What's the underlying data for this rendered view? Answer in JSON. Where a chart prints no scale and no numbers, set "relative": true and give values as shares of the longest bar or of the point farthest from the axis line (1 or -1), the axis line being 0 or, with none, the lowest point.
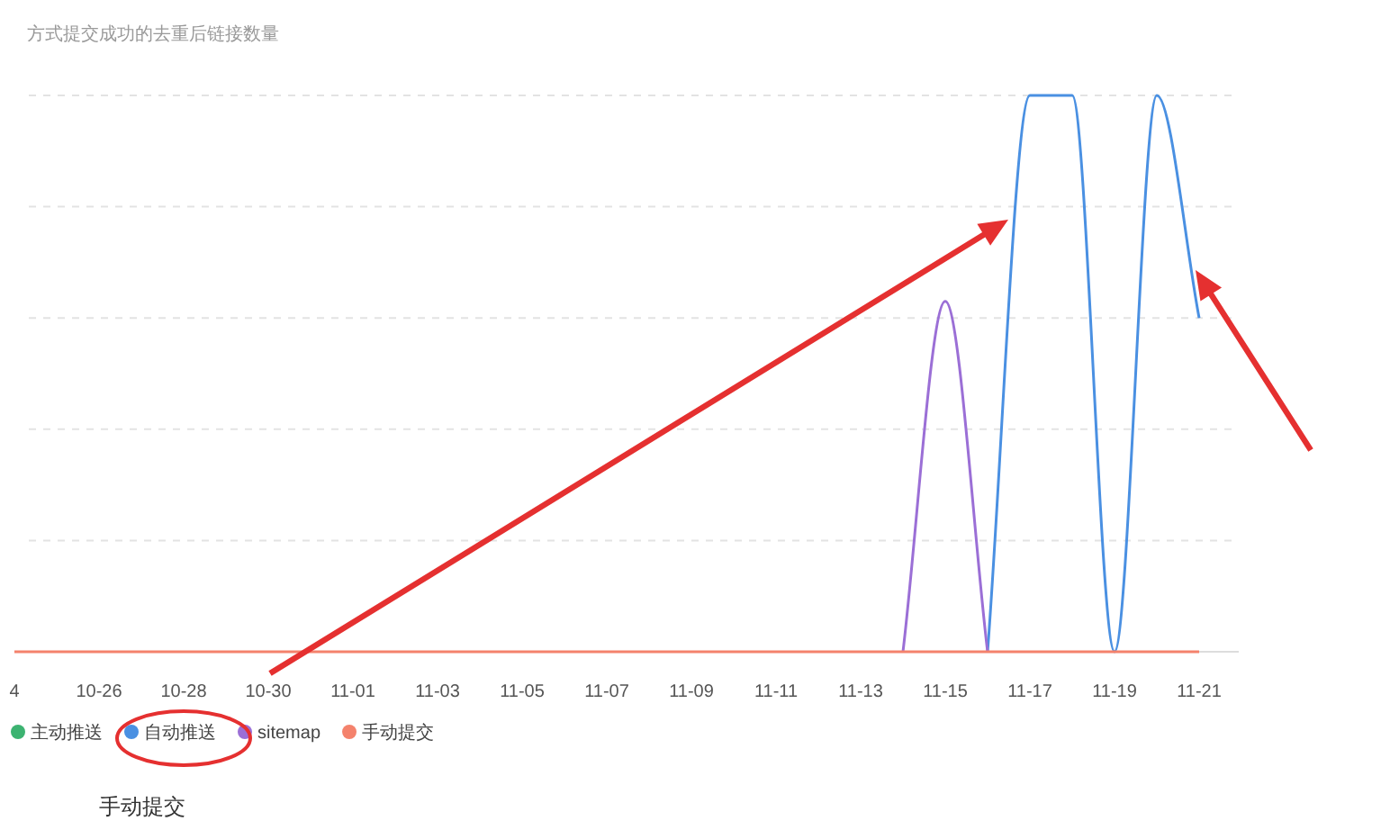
{
  "chart_data": {
    "type": "line",
    "title": "方式提交成功的去重后链接数量",
    "relative": true,
    "grid": "y",
    "legend": "bottom left",
    "marker": "none",
    "categories": [
      "4",
      null,
      "10-26",
      null,
      "10-28",
      null,
      "10-30",
      null,
      "11-01",
      null,
      "11-03",
      null,
      "11-05",
      null,
      "11-07",
      null,
      "11-09",
      null,
      "11-11",
      null,
      "11-13",
      null,
      "11-15",
      null,
      "11-17",
      null,
      "11-19",
      null,
      "11-21"
    ],
    "series": [
      {
        "name": "主动推送",
        "color": "#3cb371",
        "values": [
          null,
          null,
          null,
          null,
          null,
          null,
          null,
          null,
          null,
          null,
          null,
          null,
          null,
          null,
          null,
          null,
          null,
          null,
          null,
          null,
          null,
          null,
          null,
          null,
          null,
          null,
          null,
          null,
          null
        ]
      },
      {
        "name": "自动推送",
        "color": "#4a90e2",
        "values": [
          null,
          null,
          null,
          null,
          null,
          null,
          null,
          null,
          null,
          null,
          null,
          null,
          null,
          null,
          null,
          null,
          null,
          null,
          null,
          null,
          null,
          null,
          null,
          0,
          1,
          1,
          0,
          1,
          0.6
        ]
      },
      {
        "name": "sitemap",
        "color": "#9b6fd6",
        "values": [
          null,
          null,
          null,
          null,
          null,
          null,
          null,
          null,
          null,
          null,
          null,
          null,
          null,
          null,
          null,
          null,
          null,
          null,
          null,
          null,
          null,
          0,
          0.63,
          0,
          null,
          null,
          null,
          null,
          null
        ]
      },
      {
        "name": "手动提交",
        "color": "#f4826c",
        "values": [
          0,
          0,
          0,
          0,
          0,
          0,
          0,
          0,
          0,
          0,
          0,
          0,
          0,
          0,
          0,
          0,
          0,
          0,
          0,
          0,
          0,
          0,
          0,
          0,
          0,
          0,
          0,
          0,
          0
        ]
      }
    ],
    "annotations": [
      "手动提交"
    ]
  }
}
